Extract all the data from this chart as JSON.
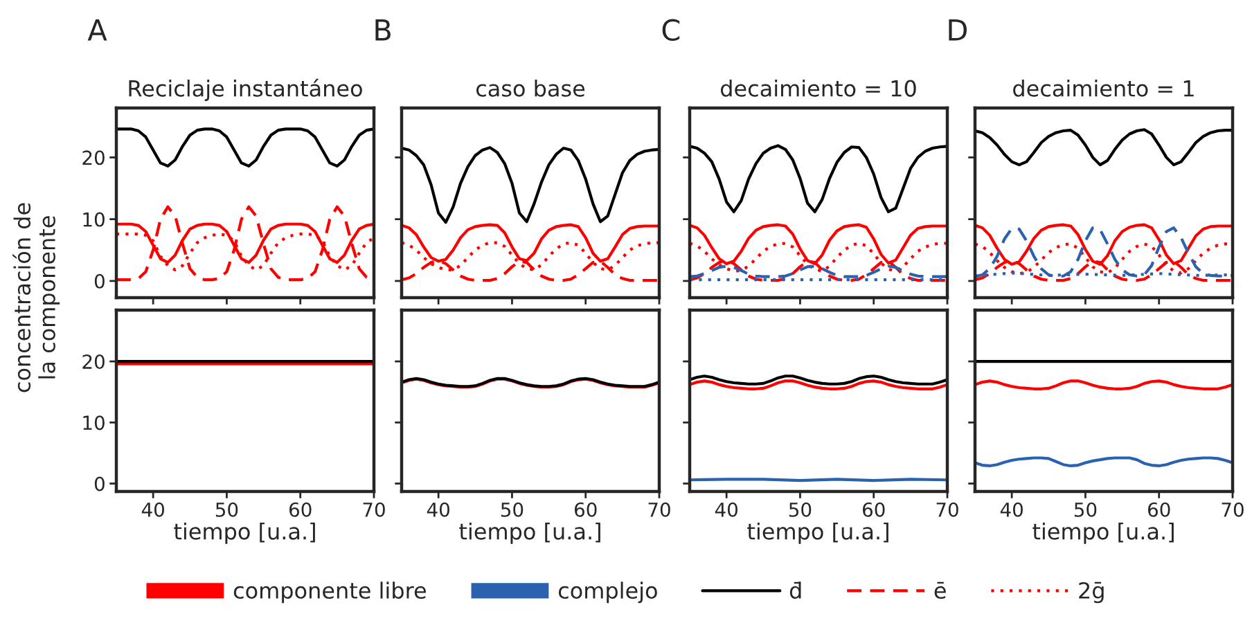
{
  "chart_data": [
    {
      "type": "line",
      "title": "A",
      "subtitle": "Reciclaje instantáneo",
      "ylabel": "concentración de\nla componente",
      "tick_labels": "y",
      "xlim": [
        35,
        70
      ],
      "xticks": [
        40,
        50,
        60,
        70
      ],
      "ylim": [
        -2.7,
        28
      ],
      "yticks": [
        0,
        10,
        20
      ],
      "x": [
        35,
        36,
        37,
        38,
        39,
        40,
        41,
        42,
        43,
        44,
        45,
        46,
        47,
        48,
        49,
        50,
        51,
        52,
        53,
        54,
        55,
        56,
        57,
        58,
        59,
        60,
        61,
        62,
        63,
        64,
        65,
        66,
        67,
        68,
        69,
        70
      ],
      "series": [
        {
          "color": "#000000",
          "line_style": "solid",
          "values": [
            24.6,
            24.6,
            24.6,
            24.3,
            23.3,
            21.2,
            19.1,
            18.6,
            19.6,
            21.8,
            23.6,
            24.4,
            24.6,
            24.6,
            24.3,
            23.3,
            21.2,
            19.1,
            18.6,
            19.6,
            21.8,
            23.6,
            24.4,
            24.6,
            24.6,
            24.6,
            24.3,
            23.3,
            21.2,
            19.1,
            18.6,
            19.6,
            21.8,
            23.6,
            24.4,
            24.6
          ]
        },
        {
          "color": "#ff0000",
          "line_style": "solid",
          "values": [
            9.2,
            9.2,
            9.2,
            9.0,
            8.0,
            5.8,
            3.6,
            3.0,
            4.2,
            6.6,
            8.4,
            9.0,
            9.2,
            9.2,
            9.0,
            8.0,
            5.8,
            3.6,
            3.0,
            4.2,
            6.6,
            8.4,
            9.0,
            9.2,
            9.2,
            9.2,
            9.0,
            8.0,
            5.8,
            3.6,
            3.0,
            4.2,
            6.6,
            8.4,
            9.0,
            9.2
          ]
        },
        {
          "color": "#ff0000",
          "line_style": "dashed",
          "values": [
            0.2,
            0.2,
            0.2,
            0.4,
            1.5,
            5.0,
            10.0,
            12.0,
            10.5,
            6.0,
            2.0,
            0.6,
            0.2,
            0.2,
            0.4,
            1.5,
            5.0,
            10.0,
            12.0,
            10.5,
            6.0,
            2.0,
            0.6,
            0.2,
            0.2,
            0.2,
            0.4,
            1.5,
            5.0,
            10.0,
            12.0,
            10.5,
            6.0,
            2.0,
            0.6,
            0.2
          ]
        },
        {
          "color": "#ff0000",
          "line_style": "dotted",
          "values": [
            7.6,
            7.6,
            7.6,
            7.6,
            7.4,
            6.5,
            4.0,
            2.5,
            1.8,
            2.5,
            4.5,
            6.2,
            7.0,
            7.4,
            7.6,
            7.4,
            6.5,
            4.0,
            2.5,
            1.8,
            2.5,
            4.5,
            6.2,
            7.0,
            7.4,
            7.6,
            7.6,
            7.4,
            6.5,
            4.0,
            2.5,
            1.8,
            2.5,
            4.5,
            6.2,
            7.0
          ]
        }
      ]
    },
    {
      "type": "line",
      "title": "B",
      "subtitle": "caso base",
      "tick_labels": false,
      "xlim": [
        35,
        70
      ],
      "xticks": [
        40,
        50,
        60,
        70
      ],
      "ylim": [
        -2.7,
        28
      ],
      "yticks": [
        0,
        10,
        20
      ],
      "x": [
        35,
        36,
        37,
        38,
        39,
        40,
        41,
        42,
        43,
        44,
        45,
        46,
        47,
        48,
        49,
        50,
        51,
        52,
        53,
        54,
        55,
        56,
        57,
        58,
        59,
        60,
        61,
        62,
        63,
        64,
        65,
        66,
        67,
        68,
        69,
        70
      ],
      "series": [
        {
          "color": "#000000",
          "line_style": "solid",
          "values": [
            21.5,
            21.2,
            20.3,
            18.8,
            15.6,
            11.0,
            9.5,
            12.0,
            15.8,
            18.5,
            20.3,
            21.2,
            21.6,
            20.8,
            19.0,
            15.8,
            11.0,
            9.6,
            12.5,
            16.0,
            18.8,
            20.5,
            21.5,
            21.2,
            19.5,
            16.5,
            12.5,
            9.6,
            10.5,
            14.0,
            17.5,
            19.5,
            20.5,
            21.0,
            21.2,
            21.3
          ]
        },
        {
          "color": "#ff0000",
          "line_style": "solid",
          "values": [
            9.0,
            8.6,
            7.5,
            5.5,
            3.8,
            3.2,
            3.5,
            5.0,
            7.0,
            8.3,
            8.8,
            9.0,
            9.1,
            9.0,
            7.8,
            5.5,
            3.6,
            3.3,
            4.5,
            6.8,
            8.2,
            8.8,
            9.0,
            9.1,
            8.8,
            7.0,
            4.5,
            3.2,
            3.6,
            5.5,
            7.5,
            8.5,
            8.8,
            8.9,
            8.9,
            8.9
          ]
        },
        {
          "color": "#ff0000",
          "line_style": "dashed",
          "values": [
            0.2,
            0.5,
            1.2,
            2.2,
            3.0,
            3.3,
            2.8,
            1.8,
            0.8,
            0.3,
            0.1,
            0.1,
            0.1,
            0.4,
            1.2,
            2.3,
            3.2,
            3.0,
            1.8,
            0.8,
            0.3,
            0.1,
            0.1,
            0.3,
            1.0,
            2.0,
            3.0,
            3.2,
            2.2,
            1.0,
            0.4,
            0.1,
            0.1,
            0.1,
            0.1,
            0.1
          ]
        },
        {
          "color": "#ff0000",
          "line_style": "dotted",
          "values": [
            6.2,
            5.8,
            5.0,
            3.8,
            2.8,
            2.2,
            1.8,
            1.8,
            2.5,
            3.8,
            5.0,
            5.8,
            6.2,
            6.2,
            5.6,
            4.2,
            2.8,
            2.0,
            1.8,
            2.6,
            4.0,
            5.2,
            6.0,
            6.2,
            5.8,
            4.5,
            3.0,
            2.0,
            1.8,
            2.5,
            3.8,
            5.0,
            5.7,
            6.0,
            6.2,
            6.2
          ]
        }
      ]
    },
    {
      "type": "line",
      "title": "C",
      "subtitle": "decaimiento = 10",
      "legend": "bottom",
      "tick_labels": false,
      "xlim": [
        35,
        70
      ],
      "xticks": [
        40,
        50,
        60,
        70
      ],
      "ylim": [
        -2.7,
        28
      ],
      "yticks": [
        0,
        10,
        20
      ],
      "x": [
        35,
        36,
        37,
        38,
        39,
        40,
        41,
        42,
        43,
        44,
        45,
        46,
        47,
        48,
        49,
        50,
        51,
        52,
        53,
        54,
        55,
        56,
        57,
        58,
        59,
        60,
        61,
        62,
        63,
        64,
        65,
        66,
        67,
        68,
        69,
        70
      ],
      "series": [
        {
          "name": "d̄",
          "color": "#000000",
          "line_style": "solid",
          "values": [
            21.8,
            21.5,
            20.7,
            19.3,
            16.5,
            12.8,
            11.2,
            13.0,
            16.5,
            19.0,
            20.7,
            21.5,
            21.9,
            21.3,
            19.6,
            16.6,
            12.6,
            11.2,
            13.2,
            16.6,
            19.2,
            20.8,
            21.7,
            21.6,
            20.0,
            17.3,
            13.5,
            11.2,
            11.8,
            15.0,
            18.2,
            20.0,
            21.0,
            21.5,
            21.7,
            21.8
          ]
        },
        {
          "name": "componente libre",
          "color": "#ff0000",
          "line_style": "solid",
          "values": [
            9.0,
            8.6,
            7.4,
            5.4,
            3.6,
            2.8,
            3.2,
            4.8,
            6.9,
            8.2,
            8.8,
            9.0,
            9.1,
            8.9,
            7.6,
            5.2,
            3.3,
            2.8,
            4.2,
            6.6,
            8.1,
            8.8,
            9.0,
            9.1,
            8.7,
            6.8,
            4.3,
            2.9,
            3.4,
            5.4,
            7.4,
            8.5,
            8.8,
            8.9,
            8.9,
            8.9
          ]
        },
        {
          "name": "ē",
          "color": "#ff0000",
          "line_style": "dashed",
          "values": [
            0.2,
            0.5,
            1.2,
            2.2,
            3.0,
            3.3,
            2.8,
            1.8,
            0.8,
            0.3,
            0.1,
            0.1,
            0.1,
            0.4,
            1.2,
            2.3,
            3.2,
            3.0,
            1.8,
            0.8,
            0.3,
            0.1,
            0.1,
            0.3,
            1.0,
            2.0,
            3.0,
            3.2,
            2.2,
            1.0,
            0.4,
            0.1,
            0.1,
            0.1,
            0.1,
            0.1
          ]
        },
        {
          "name": "2ḡ",
          "color": "#ff0000",
          "line_style": "dotted",
          "values": [
            6.1,
            5.7,
            4.8,
            3.6,
            2.6,
            2.0,
            1.6,
            1.7,
            2.4,
            3.6,
            4.8,
            5.6,
            6.0,
            6.1,
            5.5,
            4.1,
            2.7,
            1.9,
            1.6,
            2.4,
            3.8,
            5.0,
            5.8,
            6.1,
            5.7,
            4.4,
            2.9,
            1.9,
            1.6,
            2.3,
            3.6,
            4.8,
            5.5,
            5.9,
            6.1,
            6.1
          ]
        },
        {
          "color": "#2a62b0",
          "line_style": "dashed",
          "values": [
            0.7,
            0.8,
            1.2,
            1.7,
            2.2,
            2.4,
            2.2,
            1.7,
            1.1,
            0.8,
            0.7,
            0.7,
            0.7,
            0.8,
            1.2,
            1.8,
            2.3,
            2.4,
            2.0,
            1.4,
            0.9,
            0.7,
            0.7,
            0.7,
            0.9,
            1.4,
            2.0,
            2.4,
            2.2,
            1.6,
            1.1,
            0.8,
            0.7,
            0.7,
            0.7,
            0.7
          ]
        },
        {
          "color": "#2a62b0",
          "line_style": "dotted",
          "x": [
            35,
            70
          ],
          "values": [
            0.2,
            0.2
          ]
        }
      ]
    },
    {
      "type": "line",
      "title": "D",
      "subtitle": "decaimiento = 1",
      "tick_labels": false,
      "xlim": [
        35,
        70
      ],
      "xticks": [
        40,
        50,
        60,
        70
      ],
      "ylim": [
        -2.7,
        28
      ],
      "yticks": [
        0,
        10,
        20
      ],
      "x": [
        35,
        36,
        37,
        38,
        39,
        40,
        41,
        42,
        43,
        44,
        45,
        46,
        47,
        48,
        49,
        50,
        51,
        52,
        53,
        54,
        55,
        56,
        57,
        58,
        59,
        60,
        61,
        62,
        63,
        64,
        65,
        66,
        67,
        68,
        69,
        70
      ],
      "series": [
        {
          "color": "#000000",
          "line_style": "solid",
          "values": [
            24.3,
            24.0,
            23.2,
            22.0,
            20.5,
            19.3,
            18.8,
            19.3,
            20.8,
            22.4,
            23.4,
            24.0,
            24.3,
            24.4,
            23.6,
            22.0,
            20.0,
            18.8,
            19.5,
            21.3,
            22.8,
            23.8,
            24.3,
            24.5,
            23.8,
            22.0,
            20.0,
            18.8,
            19.3,
            20.8,
            22.4,
            23.4,
            24.0,
            24.3,
            24.4,
            24.4
          ]
        },
        {
          "color": "#ff0000",
          "line_style": "solid",
          "values": [
            9.0,
            8.6,
            7.4,
            5.3,
            3.5,
            2.7,
            3.1,
            4.8,
            6.9,
            8.2,
            8.8,
            9.0,
            9.1,
            8.9,
            7.5,
            5.1,
            3.2,
            2.7,
            4.1,
            6.5,
            8.0,
            8.7,
            9.0,
            9.1,
            8.6,
            6.7,
            4.2,
            2.8,
            3.3,
            5.3,
            7.3,
            8.4,
            8.8,
            8.9,
            8.9,
            8.9
          ]
        },
        {
          "color": "#ff0000",
          "line_style": "dashed",
          "values": [
            0.2,
            0.5,
            1.2,
            2.2,
            3.0,
            3.3,
            2.8,
            1.8,
            0.8,
            0.3,
            0.1,
            0.1,
            0.1,
            0.4,
            1.2,
            2.3,
            3.2,
            3.0,
            1.8,
            0.8,
            0.3,
            0.1,
            0.1,
            0.3,
            1.0,
            2.0,
            3.0,
            3.2,
            2.2,
            1.0,
            0.4,
            0.1,
            0.1,
            0.1,
            0.1,
            0.1
          ]
        },
        {
          "color": "#ff0000",
          "line_style": "dotted",
          "values": [
            6.0,
            5.6,
            4.6,
            3.3,
            2.2,
            1.5,
            1.2,
            1.4,
            2.2,
            3.4,
            4.6,
            5.4,
            5.9,
            6.0,
            5.3,
            3.8,
            2.3,
            1.5,
            1.3,
            2.1,
            3.5,
            4.8,
            5.6,
            6.0,
            5.6,
            4.2,
            2.6,
            1.6,
            1.3,
            2.0,
            3.3,
            4.5,
            5.3,
            5.8,
            6.0,
            6.0
          ]
        },
        {
          "color": "#2a62b0",
          "line_style": "dashed",
          "values": [
            0.7,
            1.0,
            2.0,
            4.0,
            6.8,
            8.5,
            8.4,
            6.5,
            4.0,
            2.0,
            1.0,
            0.7,
            0.8,
            1.5,
            3.5,
            6.5,
            8.6,
            8.3,
            6.0,
            3.5,
            1.8,
            1.0,
            0.8,
            1.0,
            2.5,
            5.5,
            8.0,
            8.6,
            7.0,
            4.5,
            2.3,
            1.2,
            0.9,
            0.8,
            0.8,
            0.9
          ]
        },
        {
          "color": "#2a62b0",
          "line_style": "dotted",
          "x": [
            35,
            40,
            45,
            50,
            55,
            60,
            65,
            70
          ],
          "values": [
            0.8,
            1.3,
            0.9,
            1.1,
            0.9,
            1.2,
            0.9,
            1.0
          ]
        }
      ]
    },
    {
      "type": "line",
      "xlabel": "tiempo [u.a.]",
      "xlim": [
        35,
        70
      ],
      "xticks": [
        40,
        50,
        60,
        70
      ],
      "ylim": [
        -1.3,
        28.4
      ],
      "yticks": [
        0,
        10,
        20
      ],
      "x": [
        35,
        70
      ],
      "series": [
        {
          "color": "#ff0000",
          "line_style": "solid",
          "values": [
            19.6,
            19.6
          ]
        },
        {
          "color": "#000000",
          "line_style": "solid",
          "values": [
            20.0,
            20.0
          ]
        }
      ]
    },
    {
      "type": "line",
      "xlabel": "tiempo [u.a.]",
      "tick_labels": "x",
      "xlim": [
        35,
        70
      ],
      "xticks": [
        40,
        50,
        60,
        70
      ],
      "ylim": [
        -1.3,
        28.4
      ],
      "yticks": [
        0,
        10,
        20
      ],
      "x": [
        35,
        36,
        37,
        38,
        39,
        40,
        41,
        42,
        43,
        44,
        45,
        46,
        47,
        48,
        49,
        50,
        51,
        52,
        53,
        54,
        55,
        56,
        57,
        58,
        59,
        60,
        61,
        62,
        63,
        64,
        65,
        66,
        67,
        68,
        69,
        70
      ],
      "series": [
        {
          "color": "#ff0000",
          "line_style": "solid",
          "values": [
            16.5,
            16.9,
            17.1,
            16.9,
            16.5,
            16.2,
            16.0,
            15.9,
            15.8,
            15.8,
            15.9,
            16.3,
            16.8,
            17.1,
            17.1,
            16.8,
            16.4,
            16.1,
            15.9,
            15.8,
            15.8,
            15.9,
            16.2,
            16.7,
            17.0,
            17.1,
            16.9,
            16.5,
            16.2,
            16.0,
            15.9,
            15.8,
            15.8,
            15.8,
            16.1,
            16.5
          ]
        },
        {
          "color": "#000000",
          "line_style": "solid",
          "values": [
            16.6,
            17.0,
            17.2,
            17.0,
            16.6,
            16.3,
            16.1,
            16.0,
            15.9,
            15.9,
            16.0,
            16.4,
            16.9,
            17.2,
            17.2,
            16.9,
            16.5,
            16.2,
            16.0,
            15.9,
            15.9,
            16.0,
            16.3,
            16.8,
            17.1,
            17.2,
            17.0,
            16.6,
            16.3,
            16.1,
            16.0,
            15.9,
            15.9,
            15.9,
            16.2,
            16.6
          ]
        }
      ]
    },
    {
      "type": "line",
      "xlabel": "tiempo [u.a.]",
      "tick_labels": "x",
      "xlim": [
        35,
        70
      ],
      "xticks": [
        40,
        50,
        60,
        70
      ],
      "ylim": [
        -1.3,
        28.4
      ],
      "yticks": [
        0,
        10,
        20
      ],
      "x": [
        35,
        36,
        37,
        38,
        39,
        40,
        41,
        42,
        43,
        44,
        45,
        46,
        47,
        48,
        49,
        50,
        51,
        52,
        53,
        54,
        55,
        56,
        57,
        58,
        59,
        60,
        61,
        62,
        63,
        64,
        65,
        66,
        67,
        68,
        69,
        70
      ],
      "series": [
        {
          "color": "#000000",
          "line_style": "solid",
          "values": [
            17.0,
            17.4,
            17.6,
            17.4,
            17.0,
            16.7,
            16.5,
            16.4,
            16.3,
            16.3,
            16.4,
            16.8,
            17.3,
            17.6,
            17.6,
            17.3,
            16.9,
            16.6,
            16.4,
            16.3,
            16.3,
            16.4,
            16.7,
            17.2,
            17.5,
            17.6,
            17.4,
            17.0,
            16.7,
            16.5,
            16.4,
            16.3,
            16.3,
            16.3,
            16.6,
            17.0
          ]
        },
        {
          "color": "#ff0000",
          "line_style": "solid",
          "values": [
            16.2,
            16.6,
            16.8,
            16.6,
            16.2,
            15.9,
            15.7,
            15.6,
            15.5,
            15.5,
            15.6,
            16.0,
            16.5,
            16.8,
            16.8,
            16.5,
            16.1,
            15.8,
            15.6,
            15.5,
            15.5,
            15.6,
            15.9,
            16.4,
            16.7,
            16.8,
            16.6,
            16.2,
            15.9,
            15.7,
            15.6,
            15.5,
            15.5,
            15.5,
            15.8,
            16.2
          ]
        },
        {
          "name": "complejo",
          "color": "#2a62b0",
          "line_style": "solid",
          "x": [
            35,
            40,
            45,
            50,
            55,
            60,
            65,
            70
          ],
          "values": [
            0.6,
            0.7,
            0.7,
            0.5,
            0.7,
            0.5,
            0.7,
            0.6
          ]
        }
      ]
    },
    {
      "type": "line",
      "xlabel": "tiempo [u.a.]",
      "tick_labels": "x",
      "xlim": [
        35,
        70
      ],
      "xticks": [
        40,
        50,
        60,
        70
      ],
      "ylim": [
        -1.3,
        28.4
      ],
      "yticks": [
        0,
        10,
        20
      ],
      "x": [
        35,
        36,
        37,
        38,
        39,
        40,
        41,
        42,
        43,
        44,
        45,
        46,
        47,
        48,
        49,
        50,
        51,
        52,
        53,
        54,
        55,
        56,
        57,
        58,
        59,
        60,
        61,
        62,
        63,
        64,
        65,
        66,
        67,
        68,
        69,
        70
      ],
      "series": [
        {
          "color": "#000000",
          "line_style": "solid",
          "x": [
            35,
            70
          ],
          "values": [
            20.0,
            20.0
          ]
        },
        {
          "color": "#ff0000",
          "line_style": "solid",
          "values": [
            16.2,
            16.6,
            16.8,
            16.6,
            16.2,
            15.9,
            15.7,
            15.6,
            15.5,
            15.5,
            15.6,
            16.0,
            16.5,
            16.8,
            16.8,
            16.5,
            16.1,
            15.8,
            15.6,
            15.5,
            15.5,
            15.6,
            15.9,
            16.4,
            16.7,
            16.8,
            16.6,
            16.2,
            15.9,
            15.7,
            15.6,
            15.5,
            15.5,
            15.5,
            15.8,
            16.2
          ]
        },
        {
          "color": "#2a62b0",
          "line_style": "solid",
          "values": [
            3.4,
            3.0,
            2.9,
            3.1,
            3.5,
            3.8,
            4.0,
            4.1,
            4.2,
            4.2,
            4.1,
            3.6,
            3.1,
            2.9,
            3.0,
            3.4,
            3.7,
            3.9,
            4.1,
            4.2,
            4.2,
            4.2,
            3.9,
            3.3,
            3.0,
            2.9,
            3.1,
            3.5,
            3.8,
            4.0,
            4.1,
            4.2,
            4.2,
            4.1,
            3.8,
            3.4
          ]
        }
      ]
    }
  ]
}
